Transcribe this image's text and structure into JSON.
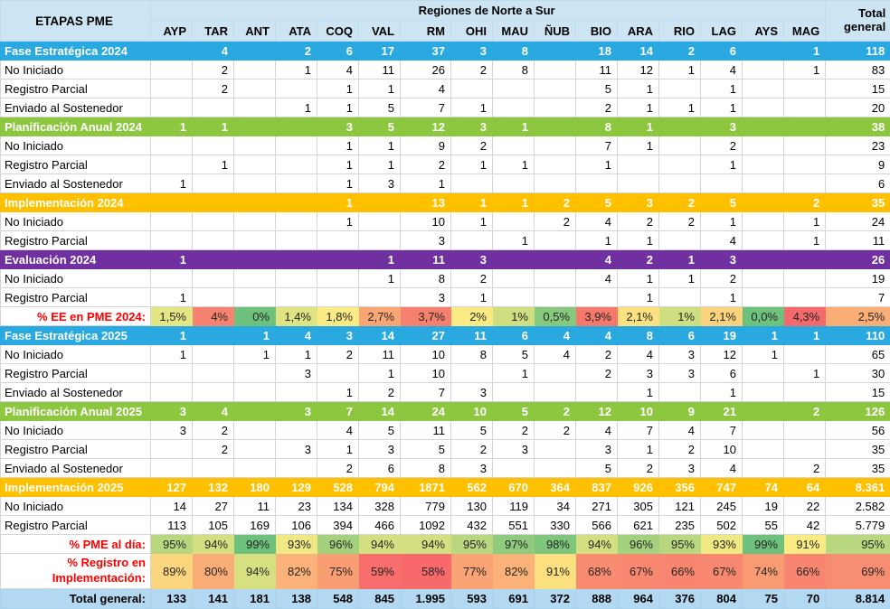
{
  "palette": {
    "section_blue": "#29A9E0",
    "section_green": "#8DC63F",
    "section_orange": "#FFC000",
    "section_purple": "#7030A0",
    "header_bg": "#CDE4F3",
    "total_row_bg": "#B3D9F2",
    "percent_label_red": "#FF0000",
    "gridline": "#D4D4D4"
  },
  "chart_data": {
    "type": "table",
    "title": "ETAPAS PME",
    "header": {
      "row_label_title": "ETAPAS PME",
      "group_title": "Regiones de Norte a Sur",
      "total_label": "Total general"
    },
    "columns": [
      "AYP",
      "TAR",
      "ANT",
      "ATA",
      "COQ",
      "VAL",
      "RM",
      "OHI",
      "MAU",
      "ÑUB",
      "BIO",
      "ARA",
      "RIO",
      "LAG",
      "AYS",
      "MAG"
    ],
    "rows": [
      {
        "style": "section-blue",
        "label": "Fase Estratégica 2024",
        "values": [
          "",
          "4",
          "",
          "2",
          "6",
          "17",
          "37",
          "3",
          "8",
          "",
          "18",
          "14",
          "2",
          "6",
          "",
          "1"
        ],
        "total": "118"
      },
      {
        "style": "detail",
        "label": "No Iniciado",
        "values": [
          "",
          "2",
          "",
          "1",
          "4",
          "11",
          "26",
          "2",
          "8",
          "",
          "11",
          "12",
          "1",
          "4",
          "",
          "1"
        ],
        "total": "83"
      },
      {
        "style": "detail",
        "label": "Registro Parcial",
        "values": [
          "",
          "2",
          "",
          "",
          "1",
          "1",
          "4",
          "",
          "",
          "",
          "5",
          "1",
          "",
          "1",
          "",
          ""
        ],
        "total": "15"
      },
      {
        "style": "detail",
        "label": "Enviado al Sostenedor",
        "values": [
          "",
          "",
          "",
          "1",
          "1",
          "5",
          "7",
          "1",
          "",
          "",
          "2",
          "1",
          "1",
          "1",
          "",
          ""
        ],
        "total": "20"
      },
      {
        "style": "section-green",
        "label": "Planificación Anual 2024",
        "values": [
          "1",
          "1",
          "",
          "",
          "3",
          "5",
          "12",
          "3",
          "1",
          "",
          "8",
          "1",
          "",
          "3",
          "",
          ""
        ],
        "total": "38"
      },
      {
        "style": "detail",
        "label": "No Iniciado",
        "values": [
          "",
          "",
          "",
          "",
          "1",
          "1",
          "9",
          "2",
          "",
          "",
          "7",
          "1",
          "",
          "2",
          "",
          ""
        ],
        "total": "23"
      },
      {
        "style": "detail",
        "label": "Registro Parcial",
        "values": [
          "",
          "1",
          "",
          "",
          "1",
          "1",
          "2",
          "1",
          "1",
          "",
          "1",
          "",
          "",
          "1",
          "",
          ""
        ],
        "total": "9"
      },
      {
        "style": "detail",
        "label": "Enviado al Sostenedor",
        "values": [
          "1",
          "",
          "",
          "",
          "1",
          "3",
          "1",
          "",
          "",
          "",
          "",
          "",
          "",
          "",
          "",
          ""
        ],
        "total": "6"
      },
      {
        "style": "section-orange",
        "label": "Implementación 2024",
        "values": [
          "",
          "",
          "",
          "",
          "1",
          "",
          "13",
          "1",
          "1",
          "2",
          "5",
          "3",
          "2",
          "5",
          "",
          "2"
        ],
        "total": "35"
      },
      {
        "style": "detail",
        "label": "No Iniciado",
        "values": [
          "",
          "",
          "",
          "",
          "1",
          "",
          "10",
          "1",
          "",
          "2",
          "4",
          "2",
          "2",
          "1",
          "",
          "1"
        ],
        "total": "24"
      },
      {
        "style": "detail",
        "label": "Registro Parcial",
        "values": [
          "",
          "",
          "",
          "",
          "",
          "",
          "3",
          "",
          "1",
          "",
          "1",
          "1",
          "",
          "4",
          "",
          "1"
        ],
        "total": "11"
      },
      {
        "style": "section-purple",
        "label": "Evaluación 2024",
        "values": [
          "1",
          "",
          "",
          "",
          "",
          "1",
          "11",
          "3",
          "",
          "",
          "4",
          "2",
          "1",
          "3",
          "",
          ""
        ],
        "total": "26"
      },
      {
        "style": "detail",
        "label": "No Iniciado",
        "values": [
          "",
          "",
          "",
          "",
          "",
          "1",
          "8",
          "2",
          "",
          "",
          "4",
          "1",
          "1",
          "2",
          "",
          ""
        ],
        "total": "19"
      },
      {
        "style": "detail",
        "label": "Registro Parcial",
        "values": [
          "1",
          "",
          "",
          "",
          "",
          "",
          "3",
          "1",
          "",
          "",
          "",
          "1",
          "",
          "1",
          "",
          ""
        ],
        "total": "7"
      },
      {
        "style": "percent",
        "label": "% EE en PME 2024:",
        "values": [
          "1,5%",
          "4%",
          "0%",
          "1,4%",
          "1,8%",
          "2,7%",
          "3,7%",
          "2%",
          "1%",
          "0,5%",
          "3,9%",
          "2,1%",
          "1%",
          "2,1%",
          "0,0%",
          "4,3%"
        ],
        "total": "2,5%",
        "colors": [
          "#E4E583",
          "#F5836F",
          "#6DC17D",
          "#E0E382",
          "#FBEB84",
          "#F9A674",
          "#F5806E",
          "#FAEA83",
          "#CFDE81",
          "#86C97D",
          "#F5786D",
          "#FBE180",
          "#CFDE81",
          "#FBD37E",
          "#6DC17D",
          "#F4696B"
        ],
        "total_color": "#FAAE76"
      },
      {
        "style": "section-blue",
        "label": "Fase Estratégica 2025",
        "values": [
          "1",
          "",
          "1",
          "4",
          "3",
          "14",
          "27",
          "11",
          "6",
          "4",
          "4",
          "8",
          "6",
          "19",
          "1",
          "1"
        ],
        "total": "110"
      },
      {
        "style": "detail",
        "label": "No Iniciado",
        "values": [
          "1",
          "",
          "1",
          "1",
          "2",
          "11",
          "10",
          "8",
          "5",
          "4",
          "2",
          "4",
          "3",
          "12",
          "1",
          ""
        ],
        "total": "65"
      },
      {
        "style": "detail",
        "label": "Registro Parcial",
        "values": [
          "",
          "",
          "",
          "3",
          "",
          "1",
          "10",
          "",
          "1",
          "",
          "2",
          "3",
          "3",
          "6",
          "",
          "1"
        ],
        "total": "30"
      },
      {
        "style": "detail",
        "label": "Enviado al Sostenedor",
        "values": [
          "",
          "",
          "",
          "",
          "1",
          "2",
          "7",
          "3",
          "",
          "",
          "",
          "1",
          "",
          "1",
          "",
          ""
        ],
        "total": "15"
      },
      {
        "style": "section-green",
        "label": "Planificación Anual 2025",
        "values": [
          "3",
          "4",
          "",
          "3",
          "7",
          "14",
          "24",
          "10",
          "5",
          "2",
          "12",
          "10",
          "9",
          "21",
          "",
          "2"
        ],
        "total": "126"
      },
      {
        "style": "detail",
        "label": "No Iniciado",
        "values": [
          "3",
          "2",
          "",
          "",
          "4",
          "5",
          "11",
          "5",
          "2",
          "2",
          "4",
          "7",
          "4",
          "7",
          "",
          ""
        ],
        "total": "56"
      },
      {
        "style": "detail",
        "label": "Registro Parcial",
        "values": [
          "",
          "2",
          "",
          "3",
          "1",
          "3",
          "5",
          "2",
          "3",
          "",
          "3",
          "1",
          "2",
          "10",
          "",
          ""
        ],
        "total": "35"
      },
      {
        "style": "detail",
        "label": "Enviado al Sostenedor",
        "values": [
          "",
          "",
          "",
          "",
          "2",
          "6",
          "8",
          "3",
          "",
          "",
          "5",
          "2",
          "3",
          "4",
          "",
          "2"
        ],
        "total": "35"
      },
      {
        "style": "section-orange",
        "label": "Implementación 2025",
        "values": [
          "127",
          "132",
          "180",
          "129",
          "528",
          "794",
          "1871",
          "562",
          "670",
          "364",
          "837",
          "926",
          "356",
          "747",
          "74",
          "64"
        ],
        "total": "8.361"
      },
      {
        "style": "detail",
        "label": "No Iniciado",
        "values": [
          "14",
          "27",
          "11",
          "23",
          "134",
          "328",
          "779",
          "130",
          "119",
          "34",
          "271",
          "305",
          "121",
          "245",
          "19",
          "22"
        ],
        "total": "2.582"
      },
      {
        "style": "detail",
        "label": "Registro Parcial",
        "values": [
          "113",
          "105",
          "169",
          "106",
          "394",
          "466",
          "1092",
          "432",
          "551",
          "330",
          "566",
          "621",
          "235",
          "502",
          "55",
          "42"
        ],
        "total": "5.779"
      },
      {
        "style": "percent",
        "label": "% PME al día:",
        "values": [
          "95%",
          "94%",
          "99%",
          "93%",
          "96%",
          "94%",
          "94%",
          "95%",
          "97%",
          "98%",
          "94%",
          "96%",
          "95%",
          "93%",
          "99%",
          "91%"
        ],
        "total": "95%",
        "colors": [
          "#B8D77F",
          "#D3DF81",
          "#6DC17D",
          "#EFE883",
          "#A3D17E",
          "#D3DF81",
          "#D3DF81",
          "#B8D77F",
          "#8FCB7D",
          "#7DC67C",
          "#D3DF81",
          "#A3D17E",
          "#B8D77F",
          "#EFE883",
          "#6DC17D",
          "#FBEB84"
        ],
        "total_color": "#B8D77F"
      },
      {
        "style": "percent",
        "tall": true,
        "label": "% Registro en Implementación:",
        "values": [
          "89%",
          "80%",
          "94%",
          "82%",
          "75%",
          "59%",
          "58%",
          "77%",
          "82%",
          "91%",
          "68%",
          "67%",
          "66%",
          "67%",
          "74%",
          "66%"
        ],
        "total": "69%",
        "colors": [
          "#FCD67F",
          "#FAAC76",
          "#D7E081",
          "#FBB278",
          "#F99E73",
          "#F76E6C",
          "#F7696B",
          "#FAA374",
          "#FBB278",
          "#FCE07F",
          "#F88B70",
          "#F8886F",
          "#F8856F",
          "#F8886F",
          "#F99B72",
          "#F8856F"
        ],
        "total_color": "#F88E71"
      },
      {
        "style": "total",
        "label": "Total general:",
        "values": [
          "133",
          "141",
          "181",
          "138",
          "548",
          "845",
          "1.995",
          "593",
          "691",
          "372",
          "888",
          "964",
          "376",
          "804",
          "75",
          "70"
        ],
        "total": "8.814"
      }
    ]
  }
}
